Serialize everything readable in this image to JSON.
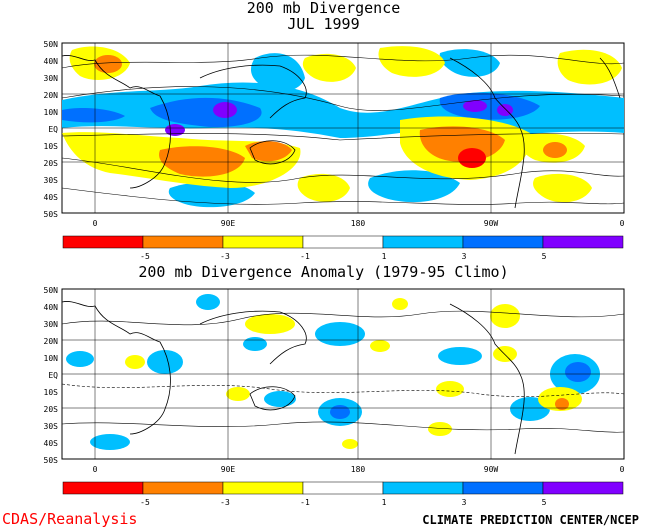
{
  "top_panel": {
    "title_line1": "200 mb Divergence",
    "title_line2": "JUL 1999",
    "lat_labels": [
      "50N",
      "40N",
      "30N",
      "20N",
      "10N",
      "EQ",
      "10S",
      "20S",
      "30S",
      "40S",
      "50S"
    ],
    "lon_labels": [
      "0",
      "90E",
      "180",
      "90W",
      "0"
    ]
  },
  "bottom_panel": {
    "title": "200 mb Divergence Anomaly (1979-95 Climo)",
    "lat_labels": [
      "50N",
      "40N",
      "30N",
      "20N",
      "10N",
      "EQ",
      "10S",
      "20S",
      "30S",
      "40S",
      "50S"
    ],
    "lon_labels": [
      "0",
      "90E",
      "180",
      "90W",
      "0"
    ]
  },
  "legend": {
    "tick_labels": [
      "-5",
      "-3",
      "-1",
      "1",
      "3",
      "5"
    ],
    "colors": [
      "#ff0000",
      "#ff8000",
      "#ffff00",
      "#ffffff",
      "#00bfff",
      "#0070ff",
      "#8000ff"
    ]
  },
  "footer": {
    "left": "CDAS/Reanalysis",
    "right": "CLIMATE PREDICTION CENTER/NCEP"
  }
}
